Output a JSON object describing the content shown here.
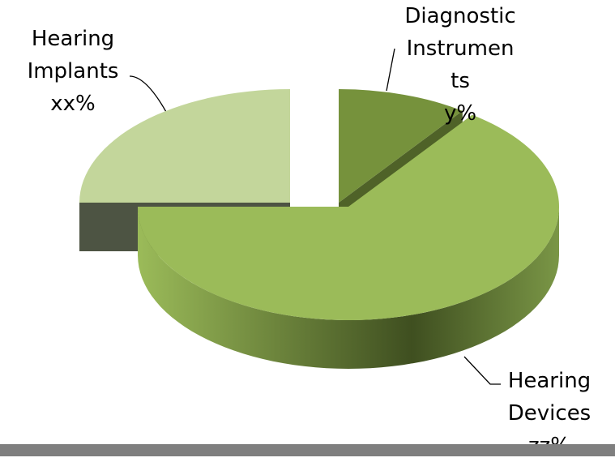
{
  "chart_data": {
    "type": "pie3d",
    "categories": [
      "Diagnostic Instruments",
      "Hearing Devices",
      "Hearing Implants"
    ],
    "values": [
      10,
      65,
      25
    ],
    "value_labels": [
      "y%",
      "zz%",
      "xx%"
    ],
    "colors": [
      "#76923c",
      "#9bbb59",
      "#c3d69b"
    ],
    "side_colors": [
      "#4f6228",
      "#4f6228",
      "#4d5443"
    ]
  }
}
